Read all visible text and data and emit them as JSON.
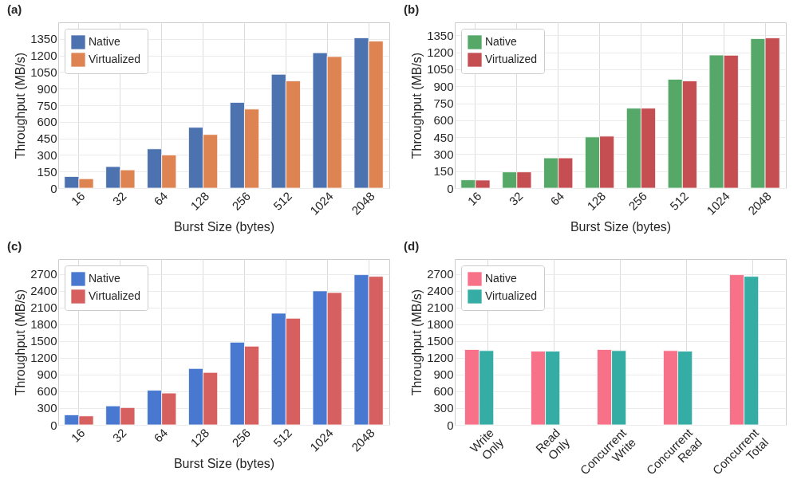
{
  "chart_data": [
    {
      "type": "bar",
      "title": "(a)",
      "xlabel": "Burst Size (bytes)",
      "ylabel": "Throughput (MB/s)",
      "categories": [
        "16",
        "32",
        "64",
        "128",
        "256",
        "512",
        "1024",
        "2048"
      ],
      "series": [
        {
          "name": "Native",
          "color": "#4c72b0",
          "values": [
            105,
            195,
            355,
            550,
            775,
            1030,
            1225,
            1360
          ]
        },
        {
          "name": "Virtualized",
          "color": "#dd8452",
          "values": [
            85,
            165,
            300,
            485,
            715,
            970,
            1190,
            1330
          ]
        }
      ],
      "ylim": [
        0,
        1500
      ],
      "yticks": [
        0,
        150,
        300,
        450,
        600,
        750,
        900,
        1050,
        1200,
        1350
      ],
      "grid": true,
      "legend": "top left"
    },
    {
      "type": "bar",
      "title": "(b)",
      "xlabel": "Burst Size (bytes)",
      "ylabel": "Throughput (MB/s)",
      "categories": [
        "16",
        "32",
        "64",
        "128",
        "256",
        "512",
        "1024",
        "2048"
      ],
      "series": [
        {
          "name": "Native",
          "color": "#55a868",
          "values": [
            73,
            143,
            267,
            452,
            706,
            962,
            1176,
            1321
          ]
        },
        {
          "name": "Virtualized",
          "color": "#c44e52",
          "values": [
            71,
            143,
            267,
            459,
            706,
            947,
            1174,
            1327
          ]
        }
      ],
      "ylim": [
        0,
        1465
      ],
      "yticks": [
        0,
        150,
        300,
        450,
        600,
        750,
        900,
        1050,
        1200,
        1350
      ],
      "grid": true,
      "legend": "top left"
    },
    {
      "type": "bar",
      "title": "(c)",
      "xlabel": "Burst Size (bytes)",
      "ylabel": "Throughput (MB/s)",
      "categories": [
        "16",
        "32",
        "64",
        "128",
        "256",
        "512",
        "1024",
        "2048"
      ],
      "series": [
        {
          "name": "Native",
          "color": "#4878d0",
          "values": [
            180,
            340,
            620,
            1010,
            1480,
            2000,
            2400,
            2690
          ]
        },
        {
          "name": "Virtualized",
          "color": "#d65f5f",
          "values": [
            160,
            310,
            570,
            940,
            1410,
            1910,
            2370,
            2660
          ]
        }
      ],
      "ylim": [
        0,
        2970
      ],
      "yticks": [
        0,
        300,
        600,
        900,
        1200,
        1500,
        1800,
        2100,
        2400,
        2700
      ],
      "grid": true,
      "legend": "top left"
    },
    {
      "type": "bar",
      "title": "(d)",
      "ylabel": "Throughput (MB/s)",
      "categories": [
        "Write Only",
        "Read Only",
        "Concurrent Write",
        "Concurrent Read",
        "Concurrent Total"
      ],
      "series": [
        {
          "name": "Native",
          "color": "#f77189",
          "values": [
            1350,
            1320,
            1350,
            1330,
            2690
          ]
        },
        {
          "name": "Virtualized",
          "color": "#36ada4",
          "values": [
            1330,
            1320,
            1330,
            1320,
            2660
          ]
        }
      ],
      "ylim": [
        0,
        2970
      ],
      "yticks": [
        0,
        300,
        600,
        900,
        1200,
        1500,
        1800,
        2100,
        2400,
        2700
      ],
      "grid": true,
      "legend": "top left"
    }
  ]
}
